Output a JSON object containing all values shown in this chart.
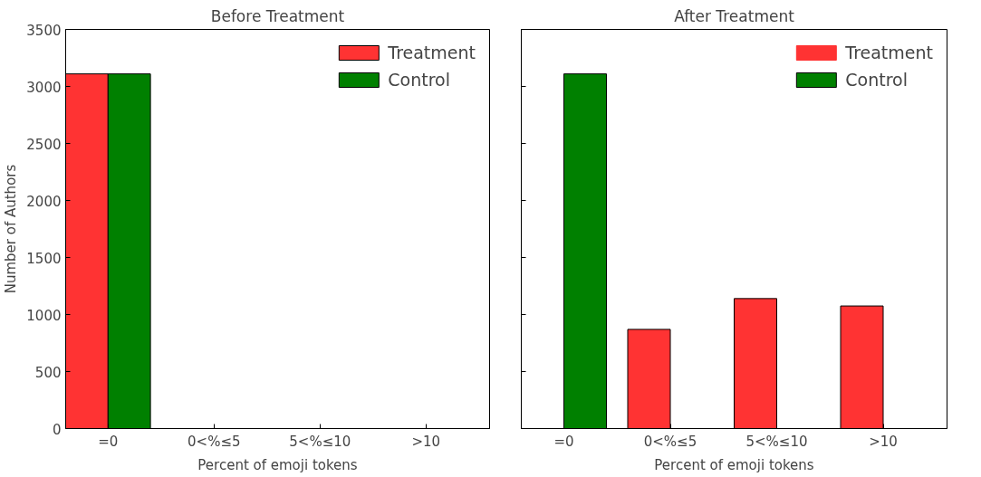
{
  "chart_data": [
    {
      "type": "bar",
      "title": "Before Treatment",
      "xlabel": "Percent of emoji tokens",
      "ylabel": "Number of Authors",
      "categories": [
        "=0",
        "0<%≤5",
        "5<%≤10",
        ">10"
      ],
      "series": [
        {
          "name": "Treatment",
          "color": "#ff3333",
          "values": [
            3110,
            0,
            0,
            0
          ]
        },
        {
          "name": "Control",
          "color": "#008000",
          "values": [
            3110,
            0,
            0,
            0
          ]
        }
      ],
      "ylim": [
        0,
        3500
      ],
      "yticks": [
        0,
        500,
        1000,
        1500,
        2000,
        2500,
        3000,
        3500
      ],
      "grid": false,
      "legend": "top right"
    },
    {
      "type": "bar",
      "title": "After Treatment",
      "xlabel": "Percent of emoji tokens",
      "categories": [
        "=0",
        "0<%≤5",
        "5<%≤10",
        ">10"
      ],
      "series": [
        {
          "name": "Treatment",
          "color": "#ff3333",
          "values": [
            0,
            870,
            1140,
            1075
          ]
        },
        {
          "name": "Control",
          "color": "#008000",
          "values": [
            3110,
            0,
            0,
            0
          ]
        }
      ],
      "ylim": [
        0,
        3500
      ],
      "yticks": [
        0,
        500,
        1000,
        1500,
        2000,
        2500,
        3000,
        3500
      ],
      "tick_labels": "x",
      "grid": false,
      "legend": "top right"
    }
  ]
}
